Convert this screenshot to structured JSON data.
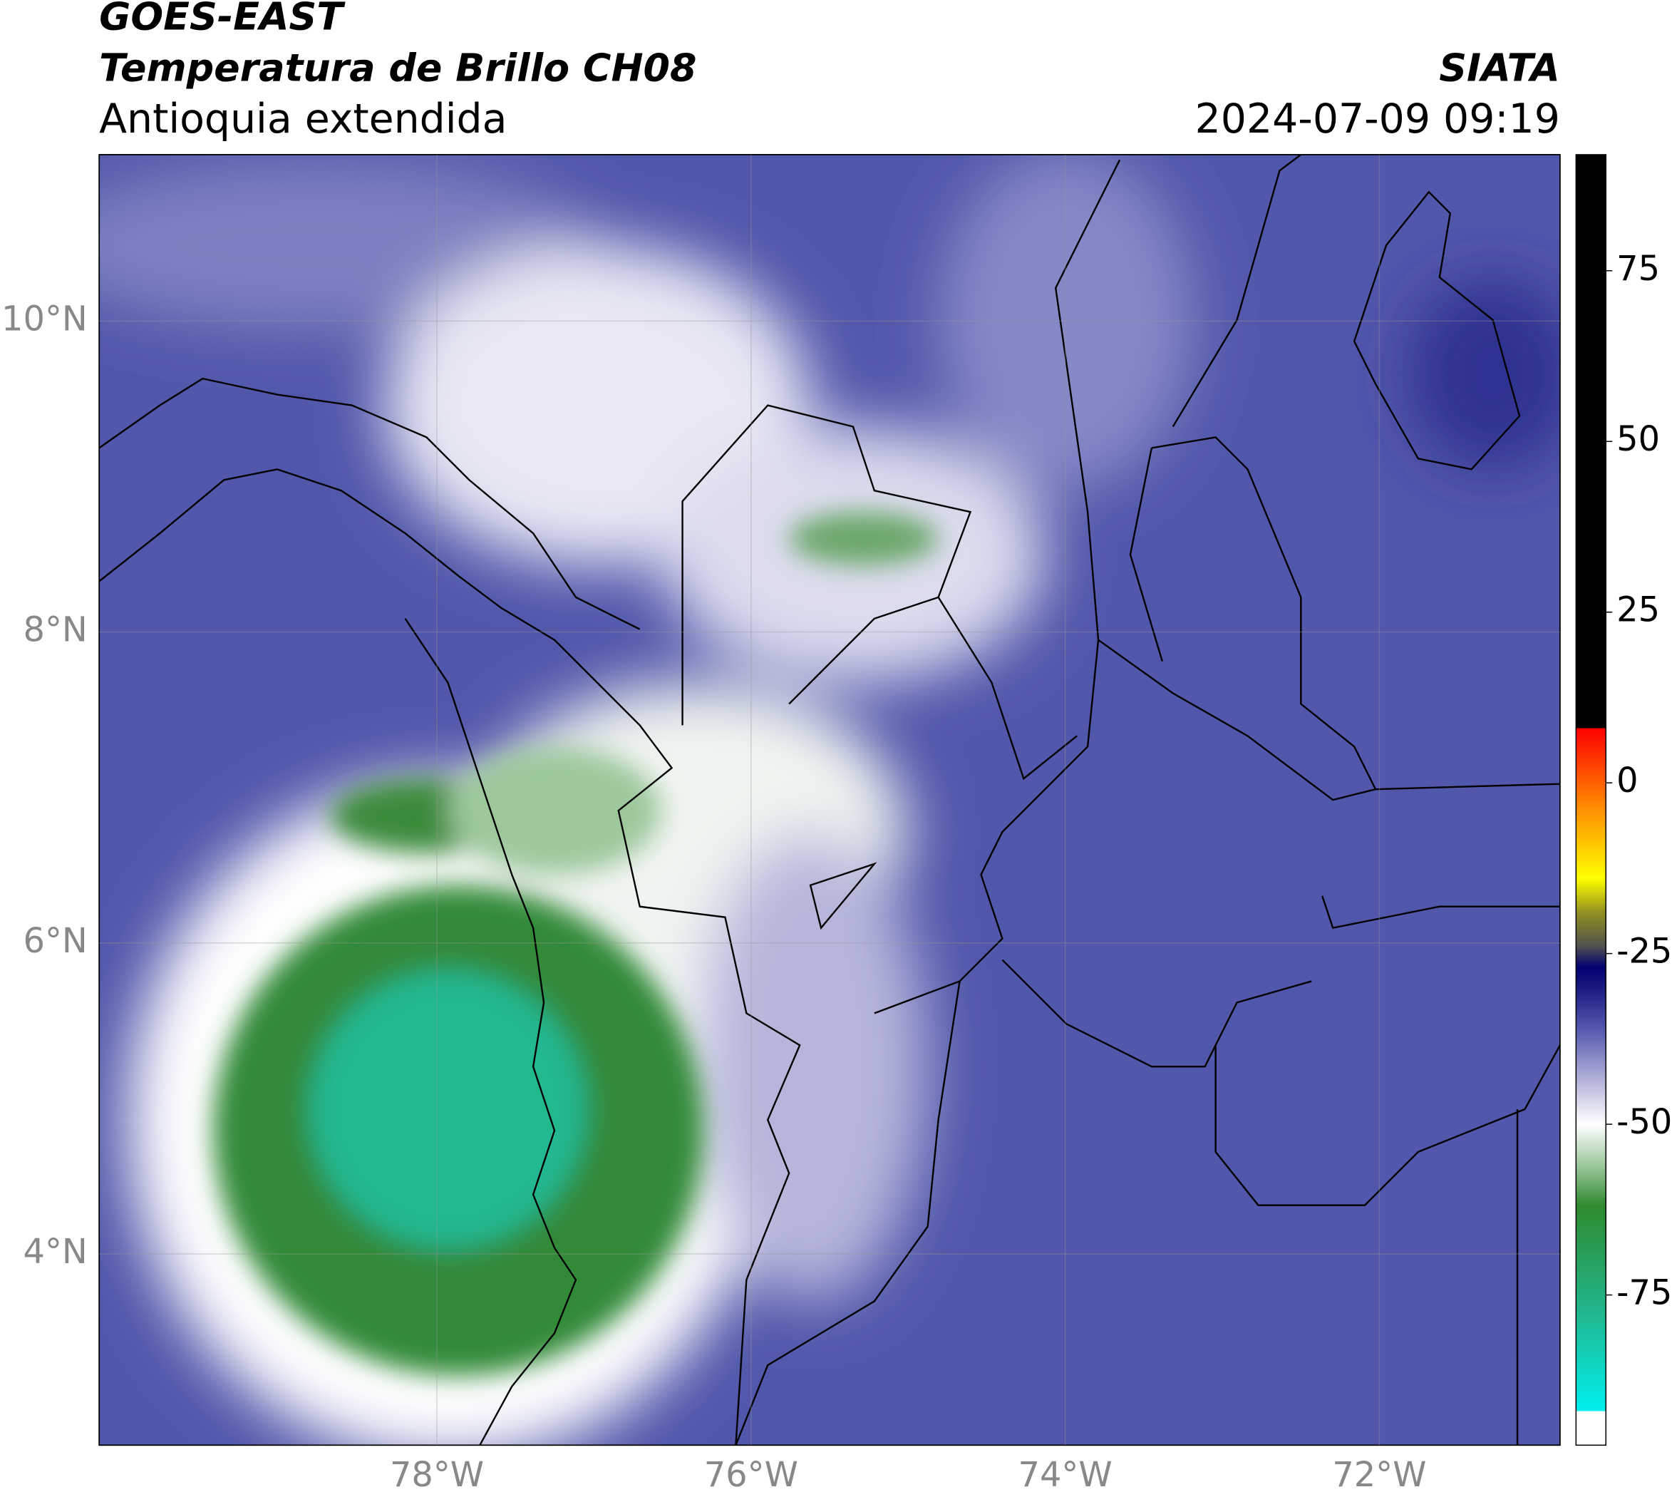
{
  "header": {
    "title_1": "GOES-EAST",
    "title_2": "Temperatura de Brillo CH08",
    "subtitle": "Antioquia extendida",
    "agency": "SIATA",
    "datetime": "2024-07-09 09:19"
  },
  "map": {
    "xlim": [
      -80.15,
      -70.85
    ],
    "ylim": [
      2.77,
      11.07
    ],
    "xticks": [
      {
        "value": -78,
        "label": "78°W"
      },
      {
        "value": -76,
        "label": "76°W"
      },
      {
        "value": -74,
        "label": "74°W"
      },
      {
        "value": -72,
        "label": "72°W"
      }
    ],
    "yticks": [
      {
        "value": 4,
        "label": "4°N"
      },
      {
        "value": 6,
        "label": "6°N"
      },
      {
        "value": 8,
        "label": "8°N"
      },
      {
        "value": 10,
        "label": "10°N"
      }
    ],
    "grid": true
  },
  "colorbar": {
    "lim": [
      -97,
      92
    ],
    "ticks": [
      -75,
      -50,
      -25,
      0,
      25,
      50,
      75
    ],
    "stops": [
      {
        "value": -97,
        "color": "#ffffff"
      },
      {
        "value": -92,
        "color": "#ffffff"
      },
      {
        "value": -92,
        "color": "#00f0f0"
      },
      {
        "value": -78,
        "color": "#20b890"
      },
      {
        "value": -62,
        "color": "#2e8a2e"
      },
      {
        "value": -56,
        "color": "#9cc89c"
      },
      {
        "value": -50,
        "color": "#ffffff"
      },
      {
        "value": -44,
        "color": "#b8b8dc"
      },
      {
        "value": -36,
        "color": "#5358ad"
      },
      {
        "value": -30,
        "color": "#1a1a80"
      },
      {
        "value": -27,
        "color": "#000070"
      },
      {
        "value": -24,
        "color": "#505050"
      },
      {
        "value": -19,
        "color": "#909020"
      },
      {
        "value": -14,
        "color": "#ffff00"
      },
      {
        "value": -4,
        "color": "#ff9000"
      },
      {
        "value": 8,
        "color": "#ff0000"
      },
      {
        "value": 8,
        "color": "#000000"
      },
      {
        "value": 92,
        "color": "#000000"
      }
    ]
  }
}
